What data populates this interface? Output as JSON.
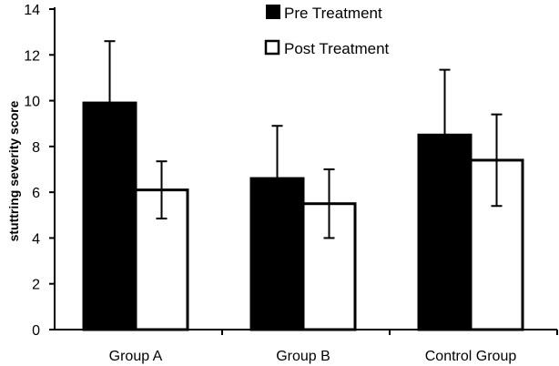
{
  "chart_data": {
    "type": "bar",
    "categories": [
      "Group A",
      "Group B",
      "Control Group"
    ],
    "series": [
      {
        "name": "Pre Treatment",
        "values": [
          9.9,
          6.6,
          8.5
        ],
        "errors": [
          2.7,
          2.3,
          2.85
        ],
        "color": "#000000"
      },
      {
        "name": "Post Treatment",
        "values": [
          6.1,
          5.5,
          7.4
        ],
        "errors": [
          1.25,
          1.5,
          2.0
        ],
        "color": "#ffffff"
      }
    ],
    "title": "",
    "xlabel": "",
    "ylabel": "stuttring severity score",
    "ylim": [
      0,
      14
    ],
    "yticks": [
      "0",
      "2",
      "4",
      "6",
      "8",
      "10",
      "12",
      "14"
    ],
    "legend_position": "top-center"
  }
}
